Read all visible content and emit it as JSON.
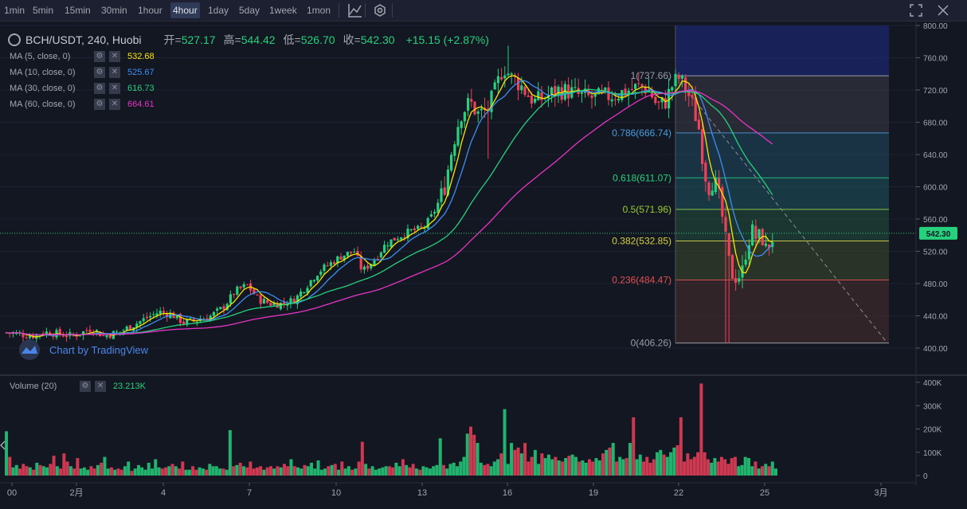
{
  "toolbar": {
    "timeframes": [
      "1min",
      "5min",
      "15min",
      "30min",
      "1hour",
      "4hour",
      "1day",
      "5day",
      "1week",
      "1mon"
    ],
    "active_timeframe": "4hour"
  },
  "header": {
    "symbol": "BCH/USDT, 240, Huobi",
    "open_label": "开=",
    "open": "527.17",
    "high_label": "高=",
    "high": "544.42",
    "low_label": "低=",
    "low": "526.70",
    "close_label": "收=",
    "close": "542.30",
    "change": "+15.15 (+2.87%)"
  },
  "indicators": [
    {
      "label": "MA (5, close, 0)",
      "value": "532.68",
      "color": "#f7e600"
    },
    {
      "label": "MA (10, close, 0)",
      "value": "525.67",
      "color": "#3d8ef0"
    },
    {
      "label": "MA (30, close, 0)",
      "value": "616.73",
      "color": "#26d07c"
    },
    {
      "label": "MA (60, close, 0)",
      "value": "664.61",
      "color": "#e535c4"
    }
  ],
  "volume_indicator": {
    "label": "Volume (20)",
    "value": "23.213K"
  },
  "watermark": "Chart by TradingView",
  "last_price_badge": "542.30",
  "chart_data": {
    "type": "candlestick",
    "price_axis": {
      "min": 400,
      "max": 800,
      "ticks": [
        "800.00",
        "760.00",
        "720.00",
        "680.00",
        "640.00",
        "600.00",
        "560.00",
        "520.00",
        "480.00",
        "440.00",
        "400.00"
      ]
    },
    "volume_axis": {
      "min": 0,
      "max": 400,
      "unit": "K",
      "ticks": [
        "400K",
        "300K",
        "200K",
        "100K",
        "0"
      ]
    },
    "time_axis_labels": [
      "00",
      "2月",
      "4",
      "7",
      "10",
      "13",
      "16",
      "19",
      "22",
      "25",
      "3月"
    ],
    "fibonacci": [
      {
        "level": "1",
        "price": "737.66",
        "label": "1(737.66)"
      },
      {
        "level": "0.786",
        "price": "666.74",
        "label": "0.786(666.74)"
      },
      {
        "level": "0.618",
        "price": "611.07",
        "label": "0.618(611.07)"
      },
      {
        "level": "0.5",
        "price": "571.96",
        "label": "0.5(571.96)"
      },
      {
        "level": "0.382",
        "price": "532.85",
        "label": "0.382(532.85)"
      },
      {
        "level": "0.236",
        "price": "484.47",
        "label": "0.236(484.47)"
      },
      {
        "level": "0",
        "price": "406.26",
        "label": "0(406.26)"
      }
    ],
    "close_path": [
      [
        0,
        420
      ],
      [
        20,
        418
      ],
      [
        40,
        415
      ],
      [
        55,
        420
      ],
      [
        70,
        418
      ],
      [
        90,
        415
      ],
      [
        105,
        420
      ],
      [
        115,
        425
      ],
      [
        130,
        415
      ],
      [
        150,
        420
      ],
      [
        170,
        430
      ],
      [
        185,
        438
      ],
      [
        200,
        445
      ],
      [
        215,
        442
      ],
      [
        230,
        432
      ],
      [
        250,
        435
      ],
      [
        265,
        440
      ],
      [
        280,
        450
      ],
      [
        295,
        470
      ],
      [
        310,
        478
      ],
      [
        325,
        460
      ],
      [
        340,
        455
      ],
      [
        355,
        455
      ],
      [
        370,
        460
      ],
      [
        385,
        478
      ],
      [
        400,
        495
      ],
      [
        415,
        505
      ],
      [
        430,
        515
      ],
      [
        445,
        520
      ],
      [
        455,
        495
      ],
      [
        470,
        510
      ],
      [
        485,
        530
      ],
      [
        500,
        538
      ],
      [
        515,
        545
      ],
      [
        530,
        548
      ],
      [
        540,
        560
      ],
      [
        548,
        575
      ],
      [
        558,
        600
      ],
      [
        568,
        650
      ],
      [
        578,
        690
      ],
      [
        590,
        705
      ],
      [
        600,
        690
      ],
      [
        612,
        695
      ],
      [
        622,
        720
      ],
      [
        632,
        750
      ],
      [
        642,
        735
      ],
      [
        652,
        728
      ],
      [
        662,
        715
      ],
      [
        672,
        705
      ],
      [
        685,
        712
      ],
      [
        700,
        720
      ],
      [
        715,
        718
      ],
      [
        730,
        712
      ],
      [
        745,
        710
      ],
      [
        760,
        712
      ],
      [
        775,
        715
      ],
      [
        790,
        720
      ],
      [
        805,
        725
      ],
      [
        815,
        720
      ],
      [
        825,
        700
      ],
      [
        835,
        705
      ],
      [
        845,
        728
      ],
      [
        852,
        735
      ],
      [
        862,
        720
      ],
      [
        870,
        700
      ],
      [
        878,
        670
      ],
      [
        884,
        620
      ],
      [
        890,
        600
      ],
      [
        896,
        610
      ],
      [
        902,
        590
      ],
      [
        908,
        555
      ],
      [
        914,
        510
      ],
      [
        920,
        490
      ],
      [
        926,
        488
      ],
      [
        932,
        495
      ],
      [
        938,
        530
      ],
      [
        944,
        545
      ],
      [
        950,
        535
      ],
      [
        956,
        540
      ],
      [
        962,
        520
      ],
      [
        968,
        535
      ],
      [
        975,
        542
      ]
    ],
    "volume_series": [
      190,
      80,
      35,
      45,
      30,
      50,
      40,
      35,
      25,
      55,
      45,
      40,
      35,
      50,
      85,
      40,
      30,
      95,
      60,
      40,
      30,
      75,
      30,
      35,
      25,
      40,
      30,
      45,
      55,
      80,
      30,
      35,
      25,
      30,
      25,
      40,
      60,
      20,
      30,
      45,
      35,
      25,
      55,
      30,
      70,
      35,
      30,
      35,
      40,
      50,
      40,
      30,
      60,
      25,
      25,
      40,
      25,
      35,
      30,
      25,
      50,
      40,
      40,
      30,
      30,
      25,
      195,
      40,
      45,
      55,
      40,
      35,
      60,
      30,
      35,
      40,
      25,
      35,
      40,
      30,
      40,
      35,
      50,
      40,
      70,
      40,
      35,
      30,
      45,
      40,
      55,
      30,
      65,
      25,
      30,
      40,
      45,
      50,
      25,
      60,
      30,
      40,
      25,
      30,
      60,
      145,
      50,
      30,
      40,
      25,
      30,
      35,
      40,
      40,
      35,
      55,
      40,
      70,
      45,
      35,
      50,
      30,
      25,
      40,
      35,
      30,
      40,
      45,
      160,
      45,
      30,
      50,
      55,
      40,
      60,
      80,
      180,
      210,
      175,
      140,
      55,
      45,
      50,
      40,
      60,
      70,
      95,
      285,
      50,
      140,
      110,
      120,
      95,
      140,
      60,
      80,
      110,
      50,
      95,
      75,
      90,
      70,
      80,
      65,
      60,
      75,
      85,
      90,
      80,
      60,
      65,
      55,
      70,
      60,
      75,
      65,
      95,
      110,
      120,
      140,
      60,
      80,
      70,
      75,
      140,
      250,
      70,
      90,
      60,
      80,
      55,
      70,
      100,
      110,
      90,
      80,
      100,
      120,
      130,
      250,
      60,
      95,
      70,
      80,
      100,
      395,
      100,
      70,
      55,
      75,
      60,
      80,
      70,
      50,
      75,
      80,
      40,
      45,
      80,
      75,
      40,
      60,
      30,
      40,
      50,
      40,
      60,
      30
    ]
  }
}
